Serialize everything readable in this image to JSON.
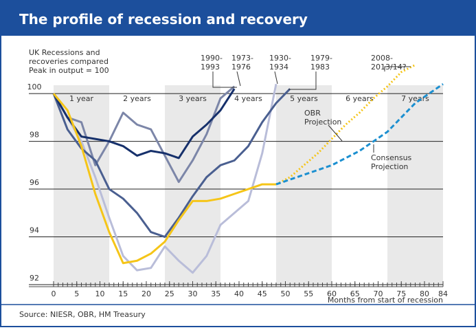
{
  "chart_data": {
    "type": "line",
    "title": "The profile of recession and recovery",
    "subtitle": [
      "UK Recessions and",
      "recoveries compared",
      "Peak in output = 100"
    ],
    "x_label": "Months from start of recession",
    "source": "Source: NIESR, OBR, HM Treasury",
    "x": [
      0,
      3,
      6,
      9,
      12,
      15,
      18,
      21,
      24,
      27,
      30,
      33,
      36,
      39,
      42,
      45,
      48,
      51,
      54,
      57,
      60,
      63,
      66,
      69,
      72,
      75,
      78,
      81,
      84
    ],
    "xlim": [
      0,
      84
    ],
    "xticks": [
      0,
      5,
      10,
      15,
      20,
      25,
      30,
      35,
      40,
      45,
      50,
      55,
      60,
      65,
      70,
      75,
      80,
      84
    ],
    "ylim": [
      92,
      101.5
    ],
    "yticks": [
      92,
      94,
      96,
      98,
      100
    ],
    "grid": true,
    "band_labels": [
      "1 year",
      "2 years",
      "3 years",
      "4 years",
      "5 years",
      "6 years",
      "7 years"
    ],
    "series": [
      {
        "color": "#b9bdd9",
        "dash": "solid",
        "values": [
          100,
          99,
          98,
          96.5,
          94.8,
          93.2,
          92.6,
          92.7,
          93.6,
          93,
          92.5,
          93.2,
          94.5,
          95,
          95.5,
          97.5,
          100.4,
          null,
          null,
          null,
          null,
          null,
          null,
          null,
          null,
          null,
          null,
          null,
          null
        ]
      },
      {
        "color": "#7c86a8",
        "dash": "solid",
        "values": [
          100,
          99,
          98.8,
          97,
          98,
          99.2,
          98.7,
          98.5,
          97.4,
          96.3,
          97.2,
          98.3,
          99.8,
          100.3,
          null,
          null,
          null,
          null,
          null,
          null,
          null,
          null,
          null,
          null,
          null,
          null,
          null,
          null,
          null
        ]
      },
      {
        "color": "#4a5f90",
        "dash": "solid",
        "values": [
          100,
          98.5,
          97.7,
          97.2,
          96,
          95.6,
          95,
          94.2,
          94,
          94.8,
          95.7,
          96.5,
          97,
          97.2,
          97.8,
          98.8,
          99.6,
          100.2,
          null,
          null,
          null,
          null,
          null,
          null,
          null,
          null,
          null,
          null,
          null
        ]
      },
      {
        "color": "#16306b",
        "dash": "solid",
        "values": [
          100,
          99,
          98.2,
          98.1,
          98,
          97.8,
          97.4,
          97.6,
          97.5,
          97.3,
          98.2,
          98.7,
          99.3,
          100.2,
          null,
          null,
          null,
          null,
          null,
          null,
          null,
          null,
          null,
          null,
          null,
          null,
          null,
          null,
          null
        ]
      },
      {
        "color": "#f5c518",
        "dash": "solid",
        "values": [
          100,
          99.3,
          97.8,
          95.8,
          94.2,
          92.9,
          93,
          93.3,
          93.8,
          94.7,
          95.5,
          95.5,
          95.6,
          95.8,
          96,
          96.2,
          96.2,
          null,
          null,
          null,
          null,
          null,
          null,
          null,
          null,
          null,
          null,
          null,
          null
        ]
      },
      {
        "color": "#f5c518",
        "dash": "dotted",
        "values": [
          null,
          null,
          null,
          null,
          null,
          null,
          null,
          null,
          null,
          null,
          null,
          null,
          null,
          null,
          null,
          null,
          96.2,
          96.5,
          97,
          97.5,
          98.1,
          98.7,
          99.2,
          99.8,
          100.3,
          100.9,
          101.2,
          null,
          null
        ]
      },
      {
        "color": "#1b8fd0",
        "dash": "dashed",
        "values": [
          null,
          null,
          null,
          null,
          null,
          null,
          null,
          null,
          null,
          null,
          null,
          null,
          null,
          null,
          null,
          null,
          96.2,
          96.4,
          96.6,
          96.8,
          97,
          97.3,
          97.6,
          98,
          98.4,
          99,
          99.6,
          100,
          100.4
        ]
      }
    ],
    "annotations": [
      {
        "lines": [
          "1990-",
          "1993"
        ]
      },
      {
        "lines": [
          "1973-",
          "1976"
        ]
      },
      {
        "lines": [
          "1930-",
          "1934"
        ]
      },
      {
        "lines": [
          "1979-",
          "1983"
        ]
      },
      {
        "lines": [
          "2008-",
          "2013/14?"
        ]
      },
      {
        "lines": [
          "OBR",
          "Projection"
        ]
      },
      {
        "lines": [
          "Consensus",
          "Projection"
        ]
      }
    ]
  }
}
